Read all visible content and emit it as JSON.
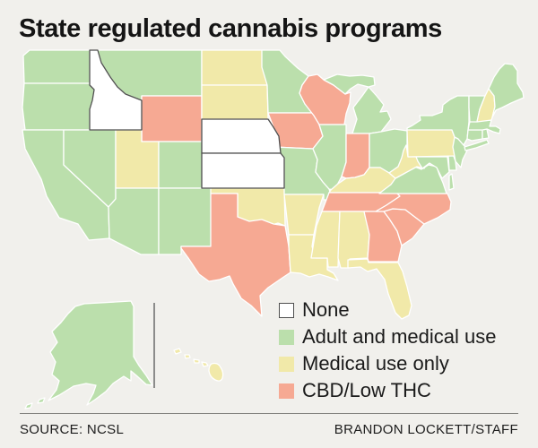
{
  "title": "State regulated cannabis programs",
  "footer": {
    "source": "SOURCE: NCSL",
    "credit": "BRANDON LOCKETT/STAFF"
  },
  "colors": {
    "background": "#f1f0ec",
    "title_text": "#151515",
    "legend_text": "#1a1a1a",
    "footer_text": "#1d1d1d",
    "state_border": "#ffffff",
    "none_state_border": "#4f4f4f",
    "inset_divider": "#6b6b6b"
  },
  "legend": {
    "items": [
      {
        "key": "none",
        "label": "None",
        "color": "#ffffff",
        "outlined": true
      },
      {
        "key": "adult_medical",
        "label": "Adult and medical use",
        "color": "#bbdfac",
        "outlined": false
      },
      {
        "key": "medical",
        "label": "Medical use only",
        "color": "#f1e9a9",
        "outlined": false
      },
      {
        "key": "cbd",
        "label": "CBD/Low THC",
        "color": "#f6a993",
        "outlined": false
      }
    ]
  },
  "map": {
    "states": {
      "WA": "adult_medical",
      "OR": "adult_medical",
      "CA": "adult_medical",
      "NV": "adult_medical",
      "ID": "none",
      "MT": "adult_medical",
      "WY": "cbd",
      "UT": "medical",
      "AZ": "adult_medical",
      "CO": "adult_medical",
      "NM": "adult_medical",
      "ND": "medical",
      "SD": "medical",
      "NE": "none",
      "KS": "none",
      "OK": "medical",
      "TX": "cbd",
      "MN": "adult_medical",
      "IA": "cbd",
      "MO": "adult_medical",
      "AR": "medical",
      "LA": "medical",
      "WI": "cbd",
      "IL": "adult_medical",
      "MI": "adult_medical",
      "IN": "cbd",
      "OH": "adult_medical",
      "KY": "medical",
      "TN": "cbd",
      "MS": "medical",
      "AL": "medical",
      "GA": "cbd",
      "FL": "medical",
      "SC": "cbd",
      "NC": "cbd",
      "VA": "adult_medical",
      "WV": "medical",
      "MD": "adult_medical",
      "DE": "adult_medical",
      "PA": "medical",
      "NJ": "adult_medical",
      "NY": "adult_medical",
      "CT": "adult_medical",
      "RI": "adult_medical",
      "MA": "adult_medical",
      "VT": "adult_medical",
      "NH": "medical",
      "ME": "adult_medical",
      "AK": "adult_medical",
      "HI": "medical"
    }
  }
}
